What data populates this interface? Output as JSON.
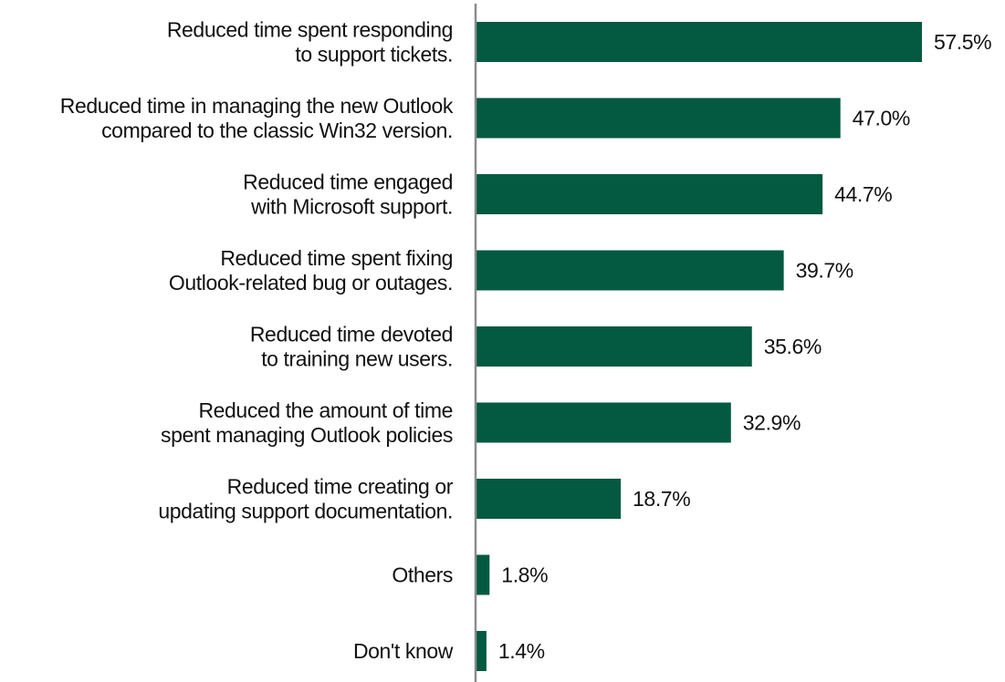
{
  "chart_data": {
    "type": "bar",
    "orientation": "horizontal",
    "categories": [
      [
        "Reduced time spent responding",
        "to support tickets."
      ],
      [
        "Reduced time in managing the new Outlook",
        "compared to the classic Win32 version."
      ],
      [
        "Reduced time engaged",
        "with Microsoft support."
      ],
      [
        "Reduced time spent fixing",
        "Outlook-related bug or outages."
      ],
      [
        "Reduced time devoted",
        "to training new users."
      ],
      [
        "Reduced the amount of time",
        "spent managing Outlook policies"
      ],
      [
        "Reduced time creating or",
        "updating support documentation."
      ],
      [
        "Others"
      ],
      [
        "Don't know"
      ]
    ],
    "values": [
      57.5,
      47.0,
      44.7,
      39.7,
      35.6,
      32.9,
      18.7,
      1.8,
      1.4
    ],
    "value_labels": [
      "57.5%",
      "47.0%",
      "44.7%",
      "39.7%",
      "35.6%",
      "32.9%",
      "18.7%",
      "1.8%",
      "1.4%"
    ],
    "title": "",
    "xlabel": "",
    "ylabel": "",
    "xlim": [
      0,
      57.5
    ],
    "grid": false,
    "legend": "none",
    "colors": {
      "bar": "#045941",
      "axis": "#8c8c8c",
      "text": "#111111"
    }
  }
}
